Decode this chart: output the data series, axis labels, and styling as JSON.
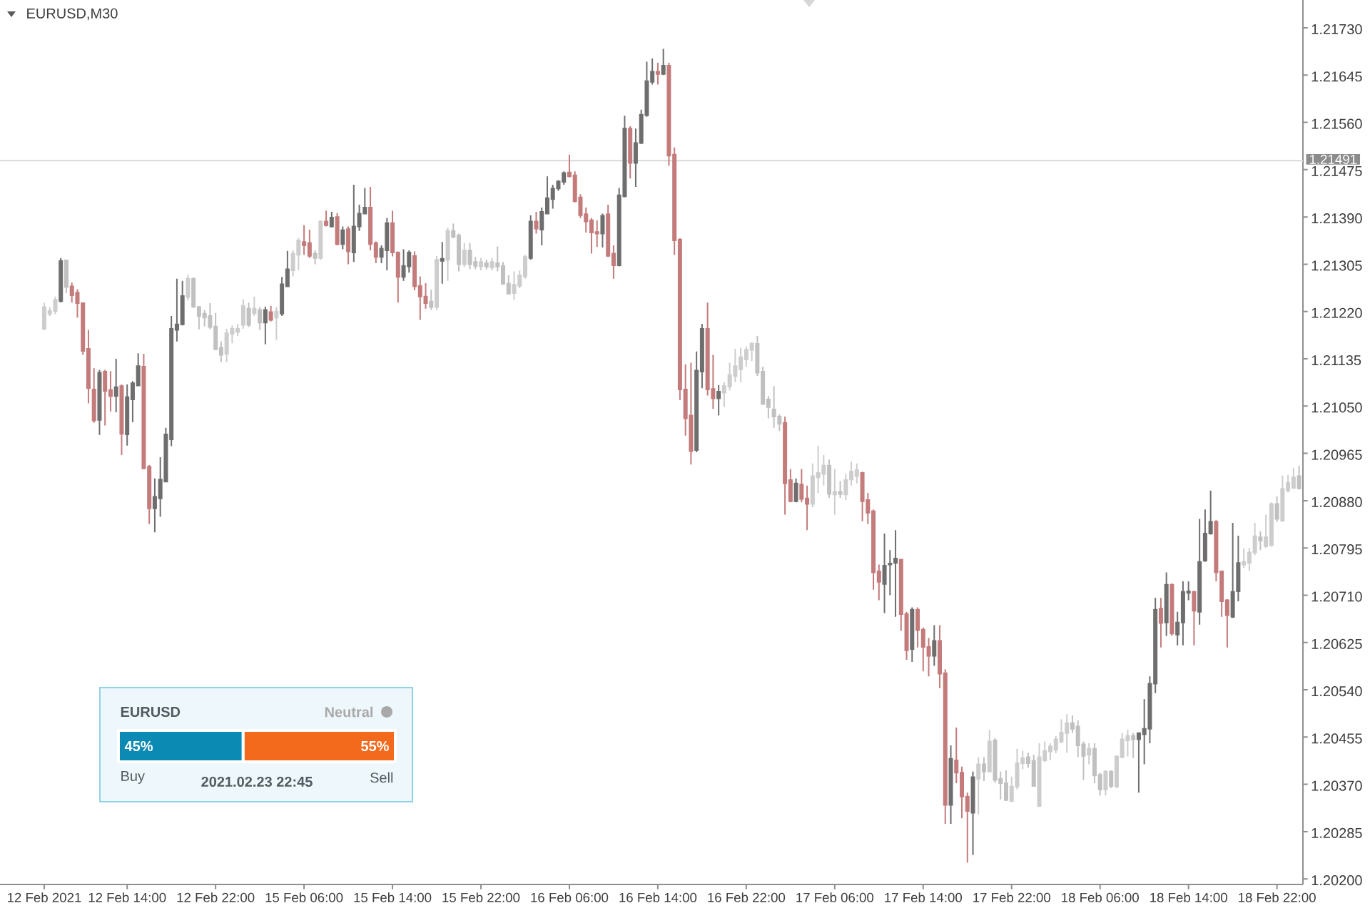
{
  "chart_data": [
    {
      "type": "candlestick",
      "title": "EURUSD,M30",
      "categories": [
        "12 Feb 2021",
        null,
        null,
        null,
        null,
        null,
        null,
        null,
        null,
        null,
        null,
        null,
        null,
        null,
        null,
        "12 Feb 14:00",
        null,
        null,
        null,
        null,
        null,
        null,
        null,
        null,
        null,
        null,
        null,
        null,
        null,
        null,
        null,
        "12 Feb 22:00",
        null,
        null,
        null,
        null,
        null,
        null,
        null,
        null,
        null,
        null,
        null,
        null,
        null,
        null,
        null,
        "15 Feb 06:00",
        null,
        null,
        null,
        null,
        null,
        null,
        null,
        null,
        null,
        null,
        null,
        null,
        null,
        null,
        null,
        "15 Feb 14:00",
        null,
        null,
        null,
        null,
        null,
        null,
        null,
        null,
        null,
        null,
        null,
        null,
        null,
        null,
        null,
        "15 Feb 22:00",
        null,
        null,
        null,
        null,
        null,
        null,
        null,
        null,
        null,
        null,
        null,
        null,
        null,
        null,
        null,
        "16 Feb 06:00",
        null,
        null,
        null,
        null,
        null,
        null,
        null,
        null,
        null,
        null,
        null,
        null,
        null,
        null,
        null,
        "16 Feb 14:00",
        null,
        null,
        null,
        null,
        null,
        null,
        null,
        null,
        null,
        null,
        null,
        null,
        null,
        null,
        null,
        "16 Feb 22:00",
        null,
        null,
        null,
        null,
        null,
        null,
        null,
        null,
        null,
        null,
        null,
        null,
        null,
        null,
        null,
        "17 Feb 06:00",
        null,
        null,
        null,
        null,
        null,
        null,
        null,
        null,
        null,
        null,
        null,
        null,
        null,
        null,
        null,
        "17 Feb 14:00",
        null,
        null,
        null,
        null,
        null,
        null,
        null,
        null,
        null,
        null,
        null,
        null,
        null,
        null,
        null,
        "17 Feb 22:00",
        null,
        null,
        null,
        null,
        null,
        null,
        null,
        null,
        null,
        null,
        null,
        null,
        null,
        null,
        null,
        "18 Feb 06:00",
        null,
        null,
        null,
        null,
        null,
        null,
        null,
        null,
        null,
        null,
        null,
        null,
        null,
        null,
        null,
        "18 Feb 14:00",
        null,
        null,
        null,
        null,
        null,
        null,
        null,
        null,
        null,
        null,
        null,
        null,
        null,
        null,
        null,
        "18 Feb 22:00",
        null,
        null,
        null,
        null
      ],
      "ohlc": [
        [
          1.21189,
          1.21236,
          1.21187,
          1.21228
        ],
        [
          1.21216,
          1.21228,
          1.21212,
          1.21221
        ],
        [
          1.21221,
          1.21247,
          1.21215,
          1.21241
        ],
        [
          1.21239,
          1.21316,
          1.21236,
          1.21311
        ],
        [
          1.21312,
          1.21313,
          1.21253,
          1.21264
        ],
        [
          1.21265,
          1.21272,
          1.21236,
          1.21249
        ],
        [
          1.21254,
          1.2126,
          1.21209,
          1.21235
        ],
        [
          1.21235,
          1.21236,
          1.21142,
          1.21149
        ],
        [
          1.21153,
          1.21187,
          1.21055,
          1.21082
        ],
        [
          1.2108,
          1.21118,
          1.2102,
          1.21024
        ],
        [
          1.21025,
          1.21115,
          1.20998,
          1.2111
        ],
        [
          1.21112,
          1.21115,
          1.21015,
          1.21077
        ],
        [
          1.21079,
          1.21113,
          1.2104,
          1.21068
        ],
        [
          1.21068,
          1.21135,
          1.21039,
          1.21084
        ],
        [
          1.21086,
          1.21089,
          1.20962,
          1.21
        ],
        [
          1.20999,
          1.21089,
          1.20979,
          1.21066
        ],
        [
          1.21062,
          1.21095,
          1.21021,
          1.21091
        ],
        [
          1.21087,
          1.21145,
          1.21086,
          1.21122
        ],
        [
          1.21121,
          1.21144,
          1.20937,
          1.20938
        ],
        [
          1.20941,
          1.20944,
          1.20838,
          1.20866
        ],
        [
          1.20866,
          1.2092,
          1.20823,
          1.20887
        ],
        [
          1.20884,
          1.20958,
          1.20851,
          1.20918
        ],
        [
          1.20914,
          1.21011,
          1.20913,
          1.20999
        ],
        [
          1.2099,
          1.21212,
          1.20978,
          1.21189
        ],
        [
          1.21187,
          1.21279,
          1.21166,
          1.21197
        ],
        [
          1.21197,
          1.21275,
          1.21195,
          1.21248
        ],
        [
          1.21246,
          1.21286,
          1.2124,
          1.21279
        ],
        [
          1.21279,
          1.21281,
          1.21226,
          1.21229
        ],
        [
          1.21228,
          1.2123,
          1.21188,
          1.21212
        ],
        [
          1.21216,
          1.21223,
          1.21193,
          1.21209
        ],
        [
          1.21212,
          1.21235,
          1.21188,
          1.21192
        ],
        [
          1.21193,
          1.21217,
          1.21151,
          1.21152
        ],
        [
          1.21155,
          1.21166,
          1.21129,
          1.21142
        ],
        [
          1.21144,
          1.21189,
          1.21129,
          1.21181
        ],
        [
          1.2118,
          1.21195,
          1.21163,
          1.21189
        ],
        [
          1.21183,
          1.21198,
          1.21176,
          1.21189
        ],
        [
          1.21196,
          1.21242,
          1.21189,
          1.2123
        ],
        [
          1.21225,
          1.21236,
          1.21192,
          1.21196
        ],
        [
          1.21217,
          1.21247,
          1.21212,
          1.21225
        ],
        [
          1.21223,
          1.21228,
          1.21187,
          1.212
        ],
        [
          1.212,
          1.21229,
          1.21161,
          1.21223
        ],
        [
          1.21219,
          1.2123,
          1.21202,
          1.21205
        ],
        [
          1.21209,
          1.21228,
          1.21169,
          1.2122
        ],
        [
          1.21216,
          1.21282,
          1.21212,
          1.21269
        ],
        [
          1.21265,
          1.21329,
          1.21264,
          1.21296
        ],
        [
          1.21294,
          1.2133,
          1.21283,
          1.21324
        ],
        [
          1.21322,
          1.21352,
          1.21294,
          1.21348
        ],
        [
          1.21345,
          1.21375,
          1.21322,
          1.21339
        ],
        [
          1.21343,
          1.21367,
          1.21316,
          1.2132
        ],
        [
          1.21324,
          1.2133,
          1.21305,
          1.21316
        ],
        [
          1.21316,
          1.21384,
          1.21313,
          1.21382
        ],
        [
          1.21382,
          1.21401,
          1.21373,
          1.21375
        ],
        [
          1.21373,
          1.21399,
          1.21371,
          1.21389
        ],
        [
          1.2139,
          1.21397,
          1.21339,
          1.21341
        ],
        [
          1.21341,
          1.21373,
          1.21332,
          1.21366
        ],
        [
          1.21368,
          1.21373,
          1.21305,
          1.21328
        ],
        [
          1.21326,
          1.21448,
          1.21309,
          1.21373
        ],
        [
          1.21373,
          1.21412,
          1.21365,
          1.21396
        ],
        [
          1.21396,
          1.21442,
          1.21395,
          1.21407
        ],
        [
          1.21407,
          1.21444,
          1.2133,
          1.21341
        ],
        [
          1.21343,
          1.21346,
          1.21307,
          1.21318
        ],
        [
          1.21318,
          1.21339,
          1.21307,
          1.21333
        ],
        [
          1.2133,
          1.21388,
          1.21294,
          1.21379
        ],
        [
          1.21379,
          1.21401,
          1.21319,
          1.21326
        ],
        [
          1.21326,
          1.21328,
          1.21236,
          1.21282
        ],
        [
          1.21282,
          1.21332,
          1.21275,
          1.21302
        ],
        [
          1.21301,
          1.2133,
          1.2129,
          1.21326
        ],
        [
          1.2132,
          1.21328,
          1.21258,
          1.21265
        ],
        [
          1.21266,
          1.21283,
          1.21205,
          1.21247
        ],
        [
          1.21247,
          1.21271,
          1.21225,
          1.21235
        ],
        [
          1.21238,
          1.21259,
          1.21223,
          1.21228
        ],
        [
          1.21228,
          1.2132,
          1.21223,
          1.21313
        ],
        [
          1.21311,
          1.21345,
          1.2127,
          1.21315
        ],
        [
          1.21313,
          1.21371,
          1.21275,
          1.21365
        ],
        [
          1.21365,
          1.21378,
          1.21352,
          1.21354
        ],
        [
          1.21357,
          1.2136,
          1.21292,
          1.21305
        ],
        [
          1.21305,
          1.21343,
          1.213,
          1.2133
        ],
        [
          1.2133,
          1.21343,
          1.21296,
          1.21305
        ],
        [
          1.21309,
          1.21318,
          1.21296,
          1.21302
        ],
        [
          1.21301,
          1.21316,
          1.21294,
          1.21309
        ],
        [
          1.21307,
          1.21313,
          1.21296,
          1.21301
        ],
        [
          1.21299,
          1.21316,
          1.21294,
          1.21309
        ],
        [
          1.21307,
          1.21337,
          1.21292,
          1.21301
        ],
        [
          1.21302,
          1.21309,
          1.21268,
          1.2127
        ],
        [
          1.2127,
          1.21285,
          1.21251,
          1.21252
        ],
        [
          1.21253,
          1.21292,
          1.21241,
          1.21268
        ],
        [
          1.21266,
          1.21294,
          1.21262,
          1.21285
        ],
        [
          1.21283,
          1.21322,
          1.21279,
          1.21318
        ],
        [
          1.21316,
          1.21393,
          1.21313,
          1.21382
        ],
        [
          1.21382,
          1.21399,
          1.2136,
          1.21369
        ],
        [
          1.21367,
          1.21407,
          1.21339,
          1.21399
        ],
        [
          1.21396,
          1.21463,
          1.21395,
          1.21424
        ],
        [
          1.21422,
          1.21448,
          1.21405,
          1.21441
        ],
        [
          1.21441,
          1.21456,
          1.21437,
          1.21454
        ],
        [
          1.21453,
          1.21472,
          1.21448,
          1.21469
        ],
        [
          1.2147,
          1.21502,
          1.21461,
          1.21463
        ],
        [
          1.21465,
          1.21472,
          1.21416,
          1.21418
        ],
        [
          1.21425,
          1.21431,
          1.21388,
          1.21393
        ],
        [
          1.21395,
          1.21407,
          1.21362,
          1.21382
        ],
        [
          1.21384,
          1.21388,
          1.21324,
          1.21362
        ],
        [
          1.21363,
          1.21384,
          1.21336,
          1.2136
        ],
        [
          1.2136,
          1.21396,
          1.21335,
          1.21392
        ],
        [
          1.21395,
          1.21412,
          1.21318,
          1.2132
        ],
        [
          1.21324,
          1.21339,
          1.21279,
          1.21303
        ],
        [
          1.21303,
          1.21442,
          1.21301,
          1.21429
        ],
        [
          1.21427,
          1.21572,
          1.21425,
          1.21549
        ],
        [
          1.21549,
          1.21553,
          1.21459,
          1.21487
        ],
        [
          1.21487,
          1.21549,
          1.21444,
          1.21523
        ],
        [
          1.21523,
          1.21583,
          1.21521,
          1.21574
        ],
        [
          1.21573,
          1.21669,
          1.2157,
          1.21634
        ],
        [
          1.21633,
          1.21675,
          1.21628,
          1.21651
        ],
        [
          1.21651,
          1.21667,
          1.21628,
          1.21647
        ],
        [
          1.21647,
          1.21692,
          1.21645,
          1.21662
        ],
        [
          1.21662,
          1.21667,
          1.21482,
          1.215
        ],
        [
          1.21502,
          1.21515,
          1.21322,
          1.21348
        ],
        [
          1.21349,
          1.21352,
          1.21061,
          1.2108
        ],
        [
          1.2108,
          1.21125,
          1.20997,
          1.21028
        ],
        [
          1.21033,
          1.21128,
          1.20945,
          1.20969
        ],
        [
          1.20971,
          1.21148,
          1.20967,
          1.21114
        ],
        [
          1.21112,
          1.21198,
          1.21082,
          1.21189
        ],
        [
          1.21189,
          1.21236,
          1.21069,
          1.2108
        ],
        [
          1.21081,
          1.21142,
          1.21045,
          1.21064
        ],
        [
          1.21064,
          1.21088,
          1.21033,
          1.21076
        ],
        [
          1.21074,
          1.21093,
          1.21048,
          1.21086
        ],
        [
          1.21085,
          1.21128,
          1.21078,
          1.21106
        ],
        [
          1.21104,
          1.21153,
          1.21093,
          1.21122
        ],
        [
          1.21116,
          1.21155,
          1.21093,
          1.21138
        ],
        [
          1.21134,
          1.21157,
          1.21121,
          1.21151
        ],
        [
          1.21151,
          1.21165,
          1.21131,
          1.21162
        ],
        [
          1.21162,
          1.21176,
          1.21104,
          1.2111
        ],
        [
          1.21112,
          1.21121,
          1.21052,
          1.21054
        ],
        [
          1.21062,
          1.21068,
          1.21028,
          1.21048
        ],
        [
          1.21044,
          1.21086,
          1.21011,
          1.21031
        ],
        [
          1.21031,
          1.21035,
          1.21005,
          1.21018
        ],
        [
          1.2102,
          1.21031,
          1.20855,
          1.20911
        ],
        [
          1.20917,
          1.20937,
          1.20877,
          1.20879
        ],
        [
          1.20879,
          1.2092,
          1.20877,
          1.20911
        ],
        [
          1.20909,
          1.20937,
          1.20877,
          1.20883
        ],
        [
          1.20884,
          1.20907,
          1.20827,
          1.20874
        ],
        [
          1.20874,
          1.20947,
          1.20868,
          1.20924
        ],
        [
          1.20922,
          1.20979,
          1.20894,
          1.2093
        ],
        [
          1.20928,
          1.20962,
          1.20907,
          1.20943
        ],
        [
          1.20943,
          1.20954,
          1.20885,
          1.20892
        ],
        [
          1.20891,
          1.20937,
          1.20855,
          1.20896
        ],
        [
          1.20896,
          1.20915,
          1.20885,
          1.20892
        ],
        [
          1.20891,
          1.20928,
          1.20881,
          1.20917
        ],
        [
          1.20918,
          1.2095,
          1.20907,
          1.20932
        ],
        [
          1.20924,
          1.20947,
          1.20911,
          1.20935
        ],
        [
          1.2093,
          1.20932,
          1.20843,
          1.20879
        ],
        [
          1.20881,
          1.20894,
          1.20838,
          1.20858
        ],
        [
          1.20861,
          1.20864,
          1.2072,
          1.20751
        ],
        [
          1.20753,
          1.20765,
          1.20701,
          1.20734
        ],
        [
          1.2073,
          1.20821,
          1.20678,
          1.20763
        ],
        [
          1.20765,
          1.20791,
          1.2071,
          1.20767
        ],
        [
          1.20768,
          1.20827,
          1.20671,
          1.20776
        ],
        [
          1.20774,
          1.20774,
          1.20646,
          1.20676
        ],
        [
          1.20676,
          1.2068,
          1.20594,
          1.20611
        ],
        [
          1.20613,
          1.20688,
          1.2059,
          1.20684
        ],
        [
          1.20684,
          1.20688,
          1.20616,
          1.20647
        ],
        [
          1.20648,
          1.20652,
          1.20573,
          1.20617
        ],
        [
          1.20617,
          1.20633,
          1.20564,
          1.20601
        ],
        [
          1.20601,
          1.20656,
          1.20583,
          1.20628
        ],
        [
          1.20628,
          1.20656,
          1.20543,
          1.20569
        ],
        [
          1.2057,
          1.20577,
          1.20299,
          1.20333
        ],
        [
          1.20333,
          1.2044,
          1.20299,
          1.20416
        ],
        [
          1.20413,
          1.20472,
          1.20372,
          1.20391
        ],
        [
          1.20391,
          1.20402,
          1.20309,
          1.20348
        ],
        [
          1.20348,
          1.20355,
          1.20229,
          1.20322
        ],
        [
          1.20319,
          1.20393,
          1.20243,
          1.20383
        ],
        [
          1.2038,
          1.20419,
          1.20316,
          1.20406
        ],
        [
          1.20406,
          1.20419,
          1.20376,
          1.20393
        ],
        [
          1.20393,
          1.20468,
          1.20393,
          1.20447
        ],
        [
          1.20449,
          1.20453,
          1.20372,
          1.20378
        ],
        [
          1.2038,
          1.20393,
          1.20343,
          1.20372
        ],
        [
          1.20372,
          1.20395,
          1.2034,
          1.20342
        ],
        [
          1.2034,
          1.20384,
          1.20338,
          1.20366
        ],
        [
          1.20366,
          1.20434,
          1.20361,
          1.20408
        ],
        [
          1.20408,
          1.2043,
          1.20397,
          1.20417
        ],
        [
          1.20419,
          1.20427,
          1.204,
          1.20408
        ],
        [
          1.20412,
          1.20423,
          1.20366,
          1.20367
        ],
        [
          1.20331,
          1.20444,
          1.20329,
          1.20419
        ],
        [
          1.20413,
          1.20447,
          1.2041,
          1.2043
        ],
        [
          1.20429,
          1.20444,
          1.20413,
          1.20438
        ],
        [
          1.20432,
          1.20457,
          1.20426,
          1.20451
        ],
        [
          1.20447,
          1.20487,
          1.20444,
          1.20463
        ],
        [
          1.20462,
          1.20496,
          1.20427,
          1.2048
        ],
        [
          1.2048,
          1.20494,
          1.20462,
          1.2047
        ],
        [
          1.20474,
          1.20485,
          1.20419,
          1.2044
        ],
        [
          1.20442,
          1.20447,
          1.20378,
          1.20421
        ],
        [
          1.20423,
          1.20444,
          1.20406,
          1.20434
        ],
        [
          1.20434,
          1.20444,
          1.20372,
          1.20386
        ],
        [
          1.20387,
          1.20391,
          1.2035,
          1.20361
        ],
        [
          1.20361,
          1.20395,
          1.2035,
          1.20393
        ],
        [
          1.20393,
          1.20395,
          1.20363,
          1.20367
        ],
        [
          1.20366,
          1.20422,
          1.20363,
          1.2042
        ],
        [
          1.20419,
          1.20462,
          1.20417,
          1.20451
        ],
        [
          1.20449,
          1.20468,
          1.2042,
          1.20457
        ],
        [
          1.20457,
          1.20462,
          1.20417,
          1.20451
        ],
        [
          1.20451,
          1.20463,
          1.20355,
          1.20462
        ],
        [
          1.2046,
          1.20523,
          1.20406,
          1.2047
        ],
        [
          1.2047,
          1.20564,
          1.20444,
          1.20551
        ],
        [
          1.20551,
          1.20705,
          1.20534,
          1.20684
        ],
        [
          1.20686,
          1.20705,
          1.20616,
          1.2066
        ],
        [
          1.20661,
          1.20751,
          1.20637,
          1.20729
        ],
        [
          1.20729,
          1.20731,
          1.20637,
          1.20641
        ],
        [
          1.20639,
          1.2068,
          1.2062,
          1.20661
        ],
        [
          1.20661,
          1.20735,
          1.2062,
          1.20716
        ],
        [
          1.20714,
          1.20735,
          1.20701,
          1.20717
        ],
        [
          1.20716,
          1.20718,
          1.2062,
          1.20682
        ],
        [
          1.2068,
          1.20847,
          1.20657,
          1.2077
        ],
        [
          1.20772,
          1.20864,
          1.2077,
          1.20821
        ],
        [
          1.20821,
          1.20898,
          1.20819,
          1.20842
        ],
        [
          1.20842,
          1.20845,
          1.20735,
          1.20751
        ],
        [
          1.20753,
          1.20754,
          1.20671,
          1.20699
        ],
        [
          1.20701,
          1.20703,
          1.20616,
          1.20674
        ],
        [
          1.20671,
          1.2084,
          1.20669,
          1.20716
        ],
        [
          1.20717,
          1.20817,
          1.20699,
          1.20768
        ],
        [
          1.20765,
          1.20794,
          1.20759,
          1.2077
        ],
        [
          1.20768,
          1.20795,
          1.20754,
          1.20787
        ],
        [
          1.20787,
          1.2084,
          1.20782,
          1.20816
        ],
        [
          1.20814,
          1.20825,
          1.20791,
          1.20808
        ],
        [
          1.20798,
          1.20855,
          1.20795,
          1.20814
        ],
        [
          1.208,
          1.20877,
          1.20797,
          1.20874
        ],
        [
          1.20874,
          1.20888,
          1.20842,
          1.20847
        ],
        [
          1.20844,
          1.20925,
          1.20842,
          1.20901
        ],
        [
          1.20898,
          1.20926,
          1.20895,
          1.20912
        ],
        [
          1.20903,
          1.20939,
          1.20901,
          1.20922
        ],
        [
          1.20924,
          1.20943,
          1.209,
          1.20902
        ]
      ],
      "colors": [
        "#cdcdcd",
        "#cdcdcd",
        "#cdcdcd",
        "#6e6e6e",
        "#c0c0c0",
        "#c47b7b",
        "#c47b7b",
        "#c47b7b",
        "#c47b7b",
        "#c47b7b",
        "#6e6e6e",
        "#c47b7b",
        "#c47b7b",
        "#6e6e6e",
        "#c47b7b",
        "#6e6e6e",
        "#6e6e6e",
        "#6e6e6e",
        "#c47b7b",
        "#c47b7b",
        "#6e6e6e",
        "#6e6e6e",
        "#6e6e6e",
        "#6e6e6e",
        "#6e6e6e",
        "#6e6e6e",
        "#cdcdcd",
        "#c0c0c0",
        "#c0c0c0",
        "#c0c0c0",
        "#c0c0c0",
        "#c0c0c0",
        "#c0c0c0",
        "#cdcdcd",
        "#cdcdcd",
        "#cdcdcd",
        "#cdcdcd",
        "#c0c0c0",
        "#cdcdcd",
        "#c0c0c0",
        "#6e6e6e",
        "#c47b7b",
        "#cdcdcd",
        "#6e6e6e",
        "#6e6e6e",
        "#cdcdcd",
        "#cdcdcd",
        "#c47b7b",
        "#c47b7b",
        "#c0c0c0",
        "#cdcdcd",
        "#c47b7b",
        "#6e6e6e",
        "#c47b7b",
        "#6e6e6e",
        "#c47b7b",
        "#6e6e6e",
        "#6e6e6e",
        "#6e6e6e",
        "#c47b7b",
        "#c47b7b",
        "#6e6e6e",
        "#6e6e6e",
        "#c47b7b",
        "#c47b7b",
        "#6e6e6e",
        "#6e6e6e",
        "#c47b7b",
        "#c47b7b",
        "#c47b7b",
        "#c0c0c0",
        "#cdcdcd",
        "#6e6e6e",
        "#cdcdcd",
        "#c0c0c0",
        "#c0c0c0",
        "#cdcdcd",
        "#c0c0c0",
        "#c0c0c0",
        "#cdcdcd",
        "#c0c0c0",
        "#cdcdcd",
        "#c0c0c0",
        "#c0c0c0",
        "#c0c0c0",
        "#cdcdcd",
        "#cdcdcd",
        "#cdcdcd",
        "#6e6e6e",
        "#c47b7b",
        "#6e6e6e",
        "#6e6e6e",
        "#6e6e6e",
        "#6e6e6e",
        "#6e6e6e",
        "#c47b7b",
        "#c47b7b",
        "#c47b7b",
        "#c47b7b",
        "#c47b7b",
        "#c47b7b",
        "#6e6e6e",
        "#c47b7b",
        "#c47b7b",
        "#6e6e6e",
        "#6e6e6e",
        "#c47b7b",
        "#6e6e6e",
        "#6e6e6e",
        "#6e6e6e",
        "#6e6e6e",
        "#c47b7b",
        "#6e6e6e",
        "#c47b7b",
        "#c47b7b",
        "#c47b7b",
        "#c47b7b",
        "#c47b7b",
        "#6e6e6e",
        "#6e6e6e",
        "#c47b7b",
        "#c47b7b",
        "#6e6e6e",
        "#cdcdcd",
        "#cdcdcd",
        "#cdcdcd",
        "#cdcdcd",
        "#cdcdcd",
        "#cdcdcd",
        "#c0c0c0",
        "#c0c0c0",
        "#c0c0c0",
        "#c0c0c0",
        "#c0c0c0",
        "#c47b7b",
        "#c47b7b",
        "#6e6e6e",
        "#c47b7b",
        "#c47b7b",
        "#cdcdcd",
        "#cdcdcd",
        "#cdcdcd",
        "#c0c0c0",
        "#cdcdcd",
        "#c0c0c0",
        "#cdcdcd",
        "#cdcdcd",
        "#cdcdcd",
        "#c47b7b",
        "#c47b7b",
        "#c47b7b",
        "#c47b7b",
        "#6e6e6e",
        "#6e6e6e",
        "#6e6e6e",
        "#c47b7b",
        "#c47b7b",
        "#6e6e6e",
        "#c47b7b",
        "#c47b7b",
        "#c47b7b",
        "#6e6e6e",
        "#c47b7b",
        "#c47b7b",
        "#6e6e6e",
        "#c47b7b",
        "#c47b7b",
        "#c47b7b",
        "#6e6e6e",
        "#cdcdcd",
        "#c0c0c0",
        "#cdcdcd",
        "#c0c0c0",
        "#c0c0c0",
        "#c0c0c0",
        "#cdcdcd",
        "#cdcdcd",
        "#cdcdcd",
        "#c0c0c0",
        "#c0c0c0",
        "#cdcdcd",
        "#cdcdcd",
        "#cdcdcd",
        "#cdcdcd",
        "#cdcdcd",
        "#cdcdcd",
        "#c0c0c0",
        "#c0c0c0",
        "#c0c0c0",
        "#cdcdcd",
        "#c0c0c0",
        "#c0c0c0",
        "#cdcdcd",
        "#c0c0c0",
        "#cdcdcd",
        "#cdcdcd",
        "#cdcdcd",
        "#c0c0c0",
        "#6e6e6e",
        "#6e6e6e",
        "#6e6e6e",
        "#6e6e6e",
        "#c47b7b",
        "#6e6e6e",
        "#c47b7b",
        "#6e6e6e",
        "#6e6e6e",
        "#6e6e6e",
        "#c47b7b",
        "#6e6e6e",
        "#6e6e6e",
        "#6e6e6e",
        "#c47b7b",
        "#c47b7b",
        "#c47b7b",
        "#6e6e6e",
        "#6e6e6e",
        "#cdcdcd",
        "#cdcdcd",
        "#cdcdcd",
        "#c0c0c0",
        "#cdcdcd",
        "#cdcdcd",
        "#c0c0c0",
        "#cdcdcd",
        "#cdcdcd",
        "#cdcdcd",
        "#c0c0c0"
      ],
      "ylim": [
        1.2019,
        1.2178
      ],
      "yticks": [
        {
          "value": 1.202,
          "label": "1.20200"
        },
        1.20285,
        {
          "value": 1.2037,
          "label": "1.20370"
        },
        1.20455,
        {
          "value": 1.2054,
          "label": "1.20540"
        },
        1.20625,
        {
          "value": 1.2071,
          "label": "1.20710"
        },
        1.20795,
        {
          "value": 1.2088,
          "label": "1.20880"
        },
        1.20965,
        {
          "value": 1.2105,
          "label": "1.21050"
        },
        1.21135,
        {
          "value": 1.2122,
          "label": "1.21220"
        },
        1.21305,
        {
          "value": 1.2139,
          "label": "1.21390"
        },
        1.21475,
        {
          "value": 1.2156,
          "label": "1.21560"
        },
        1.21645,
        {
          "value": 1.2173,
          "label": "1.21730"
        }
      ],
      "ref_lines": [
        {
          "axis": "y",
          "value": 1.21491,
          "label": "1.21491",
          "color": "#d9d9d9"
        }
      ]
    },
    {
      "type": "bar",
      "orientation": "horizontal",
      "stacked": true,
      "title": "EURUSD",
      "categories": [
        null
      ],
      "series": [
        {
          "name": "Buy",
          "color": "#0b8ab3",
          "values": [
            45
          ],
          "value_labels": [
            "45%"
          ]
        },
        {
          "name": "Sell",
          "color": "#f46a1c",
          "values": [
            55
          ],
          "value_labels": [
            "55%"
          ]
        }
      ],
      "annotations": [
        "Neutral",
        "2021.02.23 22:45"
      ]
    }
  ]
}
